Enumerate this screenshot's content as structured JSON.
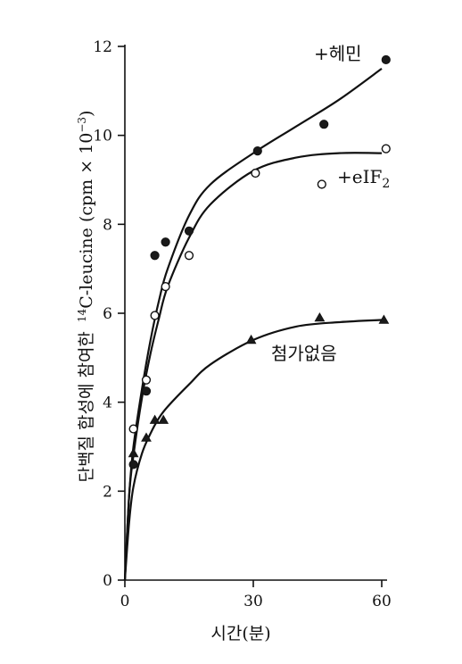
{
  "chart_data": {
    "type": "scatter",
    "xlabel": "시간(분)",
    "ylabel": "단백질 합성에 참여한 ¹⁴C-leucine (cpm × 10⁻³)",
    "ylabel_parts": {
      "korean": "단백질 합성에 참여한",
      "sup": "14",
      "main": "C-leucine (cpm × 10",
      "exp": "−3",
      "close": ")"
    },
    "xlim": [
      0,
      60
    ],
    "ylim": [
      0,
      12
    ],
    "x_ticks": [
      0,
      30,
      60
    ],
    "y_ticks": [
      0,
      2,
      4,
      6,
      8,
      10,
      12
    ],
    "grid": false,
    "legend": "labels placed next to curves",
    "series": [
      {
        "name": "+헤민",
        "marker": "filled-circle",
        "points": [
          [
            2,
            2.6
          ],
          [
            5,
            4.25
          ],
          [
            7,
            7.3
          ],
          [
            9.5,
            7.6
          ],
          [
            15,
            7.85
          ],
          [
            31,
            9.65
          ],
          [
            46.5,
            10.25
          ],
          [
            61,
            11.7
          ]
        ],
        "curve": [
          [
            0,
            0
          ],
          [
            1,
            1.9
          ],
          [
            2,
            3.0
          ],
          [
            4,
            4.3
          ],
          [
            6,
            5.4
          ],
          [
            8,
            6.3
          ],
          [
            10,
            7.0
          ],
          [
            15,
            8.2
          ],
          [
            20,
            8.9
          ],
          [
            30,
            9.6
          ],
          [
            40,
            10.2
          ],
          [
            50,
            10.8
          ],
          [
            60,
            11.5
          ]
        ]
      },
      {
        "name_main": "+eIF",
        "name_sub": "2",
        "marker": "open-circle",
        "points": [
          [
            2,
            3.4
          ],
          [
            5,
            4.5
          ],
          [
            7,
            5.95
          ],
          [
            9.5,
            6.6
          ],
          [
            15,
            7.3
          ],
          [
            30.5,
            9.15
          ],
          [
            46,
            8.9
          ],
          [
            61,
            9.7
          ]
        ],
        "curve": [
          [
            0,
            0
          ],
          [
            1,
            1.9
          ],
          [
            2,
            2.8
          ],
          [
            4,
            4.1
          ],
          [
            6,
            5.1
          ],
          [
            8,
            5.9
          ],
          [
            10,
            6.6
          ],
          [
            15,
            7.7
          ],
          [
            20,
            8.45
          ],
          [
            30,
            9.2
          ],
          [
            40,
            9.5
          ],
          [
            50,
            9.6
          ],
          [
            60,
            9.6
          ]
        ]
      },
      {
        "name": "첨가없음",
        "marker": "filled-triangle",
        "points": [
          [
            2,
            2.85
          ],
          [
            5,
            3.2
          ],
          [
            7,
            3.6
          ],
          [
            9,
            3.6
          ],
          [
            29.5,
            5.4
          ],
          [
            45.5,
            5.9
          ],
          [
            60.5,
            5.85
          ]
        ],
        "curve": [
          [
            0,
            0
          ],
          [
            1,
            1.3
          ],
          [
            2,
            2.1
          ],
          [
            4,
            2.85
          ],
          [
            6,
            3.3
          ],
          [
            8,
            3.65
          ],
          [
            10,
            3.9
          ],
          [
            15,
            4.4
          ],
          [
            20,
            4.85
          ],
          [
            30,
            5.4
          ],
          [
            40,
            5.7
          ],
          [
            50,
            5.8
          ],
          [
            60,
            5.85
          ]
        ]
      }
    ]
  }
}
